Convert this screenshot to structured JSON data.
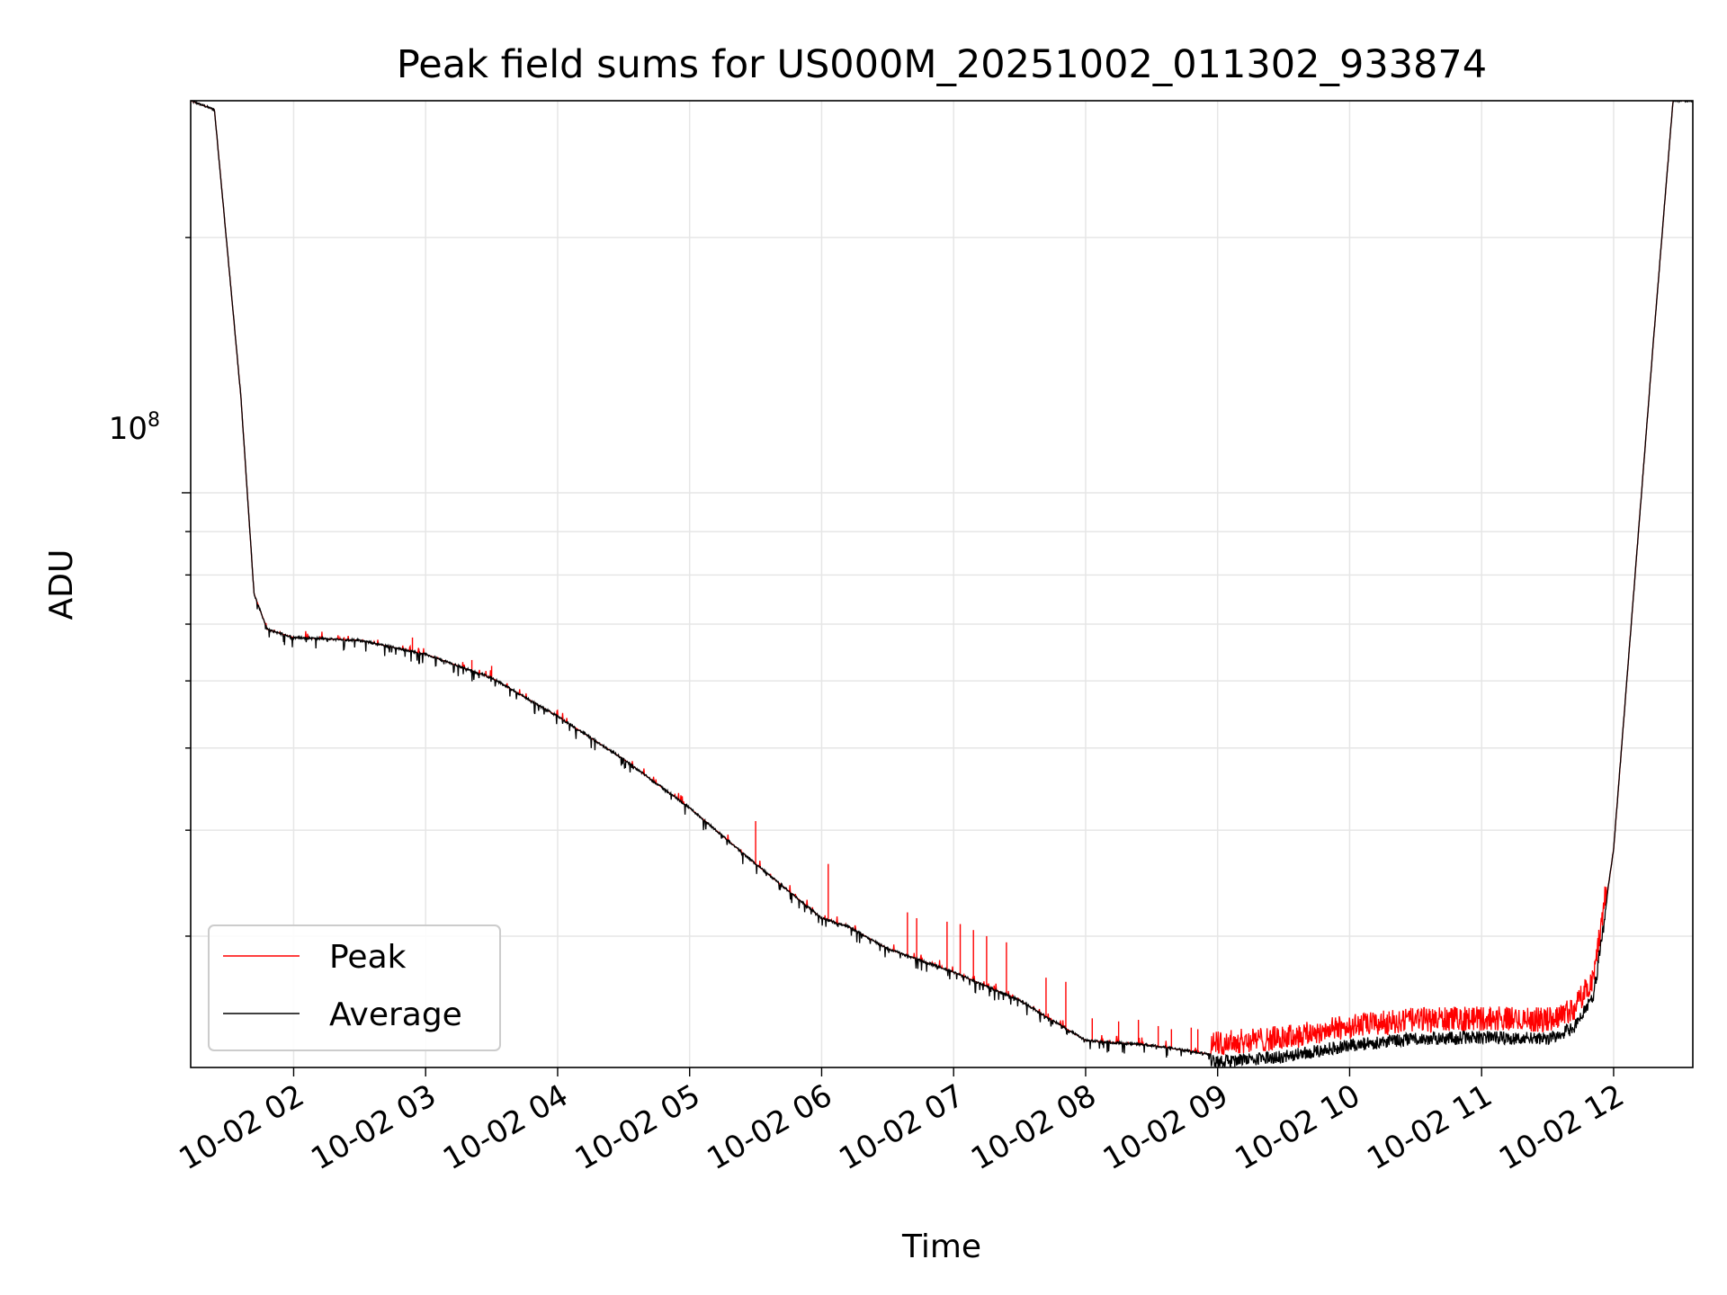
{
  "chart_data": {
    "type": "line",
    "title": "Peak field sums for US000M_20251002_011302_933874",
    "xlabel": "Time",
    "ylabel": "ADU",
    "y_scale": "log",
    "y_major_tick": {
      "value": 100000000,
      "label": "10",
      "exponent": "8"
    },
    "ylim": [
      21000000,
      290000000
    ],
    "xlim_hours": [
      1.22,
      12.6
    ],
    "x_ticks": [
      {
        "hour": 2,
        "label": "10-02 02"
      },
      {
        "hour": 3,
        "label": "10-02 03"
      },
      {
        "hour": 4,
        "label": "10-02 04"
      },
      {
        "hour": 5,
        "label": "10-02 05"
      },
      {
        "hour": 6,
        "label": "10-02 06"
      },
      {
        "hour": 7,
        "label": "10-02 07"
      },
      {
        "hour": 8,
        "label": "10-02 08"
      },
      {
        "hour": 9,
        "label": "10-02 09"
      },
      {
        "hour": 10,
        "label": "10-02 10"
      },
      {
        "hour": 11,
        "label": "10-02 11"
      },
      {
        "hour": 12,
        "label": "10-02 12"
      }
    ],
    "grid": true,
    "legend_position": "lower-left",
    "series": [
      {
        "name": "Peak",
        "color": "#ff0000"
      },
      {
        "name": "Average",
        "color": "#000000"
      }
    ],
    "average_curve": {
      "hours": [
        1.22,
        1.4,
        1.6,
        1.7,
        1.8,
        2.0,
        2.5,
        3.0,
        3.5,
        4.0,
        4.5,
        5.0,
        5.5,
        6.0,
        6.2,
        6.5,
        7.0,
        7.5,
        7.8,
        8.0,
        8.5,
        8.75,
        9.0,
        9.5,
        10.0,
        10.5,
        11.0,
        11.5,
        11.7,
        11.85,
        12.0,
        12.3,
        12.45,
        12.6
      ],
      "values": [
        290000000,
        283000000,
        130000000,
        76000000,
        69000000,
        67500000,
        67000000,
        64500000,
        60500000,
        54500000,
        48500000,
        42500000,
        36500000,
        31500000,
        30800000,
        29000000,
        27200000,
        25200000,
        23600000,
        22600000,
        22300000,
        22000000,
        21700000,
        22000000,
        22700000,
        23100000,
        23200000,
        23100000,
        23800000,
        26000000,
        38000000,
        150000000,
        290000000,
        290000000
      ]
    },
    "peak_spikes": [
      {
        "hour": 2.9,
        "value": 67500000
      },
      {
        "hour": 3.35,
        "value": 63500000
      },
      {
        "hour": 3.5,
        "value": 62500000
      },
      {
        "hour": 5.5,
        "value": 41000000
      },
      {
        "hour": 6.05,
        "value": 36500000
      },
      {
        "hour": 6.65,
        "value": 32000000
      },
      {
        "hour": 6.72,
        "value": 31500000
      },
      {
        "hour": 6.95,
        "value": 31200000
      },
      {
        "hour": 7.05,
        "value": 31000000
      },
      {
        "hour": 7.15,
        "value": 30500000
      },
      {
        "hour": 7.25,
        "value": 30000000
      },
      {
        "hour": 7.4,
        "value": 29500000
      },
      {
        "hour": 7.7,
        "value": 26800000
      },
      {
        "hour": 7.85,
        "value": 26500000
      },
      {
        "hour": 8.05,
        "value": 24000000
      },
      {
        "hour": 8.25,
        "value": 23800000
      },
      {
        "hour": 8.4,
        "value": 23900000
      },
      {
        "hour": 8.55,
        "value": 23500000
      },
      {
        "hour": 8.65,
        "value": 23300000
      },
      {
        "hour": 8.8,
        "value": 23400000
      },
      {
        "hour": 8.85,
        "value": 23300000
      }
    ],
    "noisy_band": {
      "start_hour": 8.95,
      "end_hour": 11.95,
      "peak_excess": 0.07,
      "average_dip": 0.035
    }
  }
}
